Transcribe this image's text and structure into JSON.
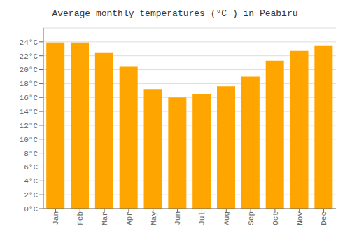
{
  "chart_data": {
    "type": "bar",
    "title": "Average monthly temperatures (°C ) in Peabiru",
    "categories": [
      "Jan",
      "Feb",
      "Mar",
      "Apr",
      "May",
      "Jun",
      "Jul",
      "Aug",
      "Sep",
      "Oct",
      "Nov",
      "Dec"
    ],
    "values": [
      23.9,
      23.9,
      22.4,
      20.4,
      17.2,
      16.0,
      16.5,
      17.6,
      19.0,
      21.3,
      22.7,
      23.4
    ],
    "color": "#FFA500",
    "ylim": [
      0,
      26
    ],
    "yticks": [
      {
        "value": 0,
        "label": "0°C"
      },
      {
        "value": 2,
        "label": "2°C"
      },
      {
        "value": 4,
        "label": "4°C"
      },
      {
        "value": 6,
        "label": "6°C"
      },
      {
        "value": 8,
        "label": "8°C"
      },
      {
        "value": 10,
        "label": "10°C"
      },
      {
        "value": 12,
        "label": "12°C"
      },
      {
        "value": 14,
        "label": "14°C"
      },
      {
        "value": 16,
        "label": "16°C"
      },
      {
        "value": 18,
        "label": "18°C"
      },
      {
        "value": 20,
        "label": "20°C"
      },
      {
        "value": 22,
        "label": "22°C"
      },
      {
        "value": 24,
        "label": "24°C"
      }
    ],
    "grid": true
  }
}
